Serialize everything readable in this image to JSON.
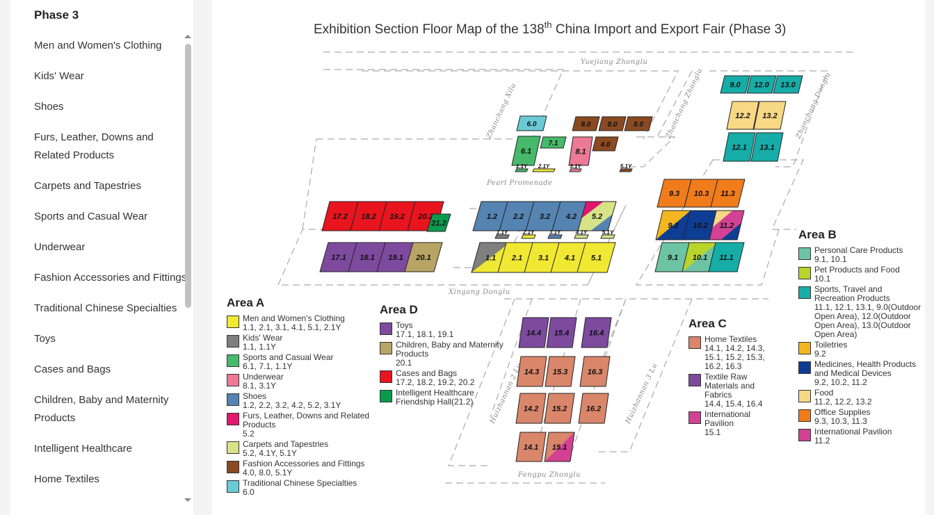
{
  "sidebar": {
    "title": "Phase 3",
    "items": [
      "Men and Women's Clothing",
      "Kids' Wear",
      "Shoes",
      "Furs, Leather, Downs and Related Products",
      "Carpets and Tapestries",
      "Sports and Casual Wear",
      "Underwear",
      "Fashion Accessories and Fittings",
      "Traditional Chinese Specialties",
      "Toys",
      "Cases and Bags",
      "Children, Baby and Maternity Products",
      "Intelligent Healthcare",
      "Home Textiles"
    ]
  },
  "map": {
    "title_pre": "Exhibition Section Floor Map of the 138",
    "title_sup": "th",
    "title_post": " China Import and Export Fair  (Phase 3)",
    "roads": [
      "Yuejiang Zhonglu",
      "Zhanchang Xilu",
      "Zhanchang Zhonglu",
      "Zhanchang Donglu",
      "Pearl Promenade",
      "Xingang Donglu",
      "Huizhannan 2 Lu",
      "Huizhannan 3 Lu",
      "Fengpu Zhonglu"
    ],
    "colors": {
      "yellow": "#f0e832",
      "gray": "#7f7f7f",
      "green": "#47b96a",
      "pink": "#ec7a96",
      "blue": "#5583b2",
      "magenta": "#e2176e",
      "lightgreen": "#d7e387",
      "brown": "#8b4a22",
      "cyan": "#6ccad6",
      "purple": "#7d4a9e",
      "tan": "#b8a465",
      "red": "#e8141e",
      "darkgreen": "#0a9a4e",
      "salmon": "#d9866a",
      "intl": "#d34194",
      "teal_green": "#6cc4a4",
      "lime": "#b9d42a",
      "teal": "#16ada8",
      "gold": "#f4b61f",
      "navy": "#0e3d94",
      "food": "#f7d885",
      "orange": "#f07c1c"
    },
    "halls": [
      {
        "label": "17.2",
        "c": [
          "red"
        ]
      },
      {
        "label": "18.2",
        "c": [
          "red"
        ]
      },
      {
        "label": "19.2",
        "c": [
          "red"
        ]
      },
      {
        "label": "20.2",
        "c": [
          "red"
        ]
      },
      {
        "label": "21.2",
        "c": [
          "darkgreen"
        ]
      },
      {
        "label": "17.1",
        "c": [
          "purple"
        ]
      },
      {
        "label": "18.1",
        "c": [
          "purple"
        ]
      },
      {
        "label": "19.1",
        "c": [
          "purple"
        ]
      },
      {
        "label": "20.1",
        "c": [
          "tan"
        ]
      },
      {
        "label": "1.2",
        "c": [
          "blue"
        ]
      },
      {
        "label": "2.2",
        "c": [
          "blue"
        ]
      },
      {
        "label": "3.2",
        "c": [
          "blue"
        ]
      },
      {
        "label": "4.2",
        "c": [
          "blue"
        ]
      },
      {
        "label": "5.2",
        "c": [
          "magenta",
          "lightgreen",
          "blue"
        ]
      },
      {
        "label": "1.1",
        "c": [
          "gray",
          "yellow"
        ]
      },
      {
        "label": "2.1",
        "c": [
          "yellow"
        ]
      },
      {
        "label": "3.1",
        "c": [
          "yellow"
        ]
      },
      {
        "label": "4.1",
        "c": [
          "yellow"
        ]
      },
      {
        "label": "5.1",
        "c": [
          "yellow"
        ]
      },
      {
        "label": "1.1Y",
        "c": [
          "gray"
        ]
      },
      {
        "label": "2.1Y",
        "c": [
          "yellow"
        ]
      },
      {
        "label": "3.1Y",
        "c": [
          "blue"
        ]
      },
      {
        "label": "4.1Y",
        "c": [
          "lightgreen"
        ]
      },
      {
        "label": "5.1Y",
        "c": [
          "lightgreen"
        ]
      },
      {
        "label": "6.0",
        "c": [
          "cyan"
        ]
      },
      {
        "label": "7.1",
        "c": [
          "green"
        ]
      },
      {
        "label": "6.1",
        "c": [
          "green"
        ]
      },
      {
        "label": "8.1",
        "c": [
          "pink"
        ]
      },
      {
        "label": "8.0",
        "c": [
          "brown"
        ]
      },
      {
        "label": "8.0",
        "c": [
          "brown"
        ]
      },
      {
        "label": "8.0",
        "c": [
          "brown"
        ]
      },
      {
        "label": "4.0",
        "c": [
          "brown"
        ]
      },
      {
        "label": "1.1Y",
        "c": [
          "green"
        ]
      },
      {
        "label": "2.1Y",
        "c": [
          "yellow"
        ]
      },
      {
        "label": "3.1Y",
        "c": [
          "pink"
        ]
      },
      {
        "label": "5.1Y",
        "c": [
          "brown"
        ]
      },
      {
        "label": "9.3",
        "c": [
          "orange"
        ]
      },
      {
        "label": "10.3",
        "c": [
          "orange"
        ]
      },
      {
        "label": "11.3",
        "c": [
          "orange"
        ]
      },
      {
        "label": "9.2",
        "c": [
          "gold",
          "navy"
        ]
      },
      {
        "label": "10.2",
        "c": [
          "navy"
        ]
      },
      {
        "label": "11.2",
        "c": [
          "food",
          "intl",
          "navy"
        ]
      },
      {
        "label": "9.1",
        "c": [
          "teal_green"
        ]
      },
      {
        "label": "10.1",
        "c": [
          "lime",
          "teal_green"
        ]
      },
      {
        "label": "11.1",
        "c": [
          "teal"
        ]
      },
      {
        "label": "9.0",
        "c": [
          "teal"
        ]
      },
      {
        "label": "12.0",
        "c": [
          "teal"
        ]
      },
      {
        "label": "13.0",
        "c": [
          "teal"
        ]
      },
      {
        "label": "12.2",
        "c": [
          "food"
        ]
      },
      {
        "label": "13.2",
        "c": [
          "food"
        ]
      },
      {
        "label": "12.1",
        "c": [
          "teal"
        ]
      },
      {
        "label": "13.1",
        "c": [
          "teal"
        ]
      },
      {
        "label": "14.4",
        "c": [
          "purple"
        ]
      },
      {
        "label": "15.4",
        "c": [
          "purple"
        ]
      },
      {
        "label": "16.4",
        "c": [
          "purple"
        ]
      },
      {
        "label": "14.3",
        "c": [
          "salmon"
        ]
      },
      {
        "label": "15.3",
        "c": [
          "salmon"
        ]
      },
      {
        "label": "16.3",
        "c": [
          "salmon"
        ]
      },
      {
        "label": "14.2",
        "c": [
          "salmon"
        ]
      },
      {
        "label": "15.2",
        "c": [
          "salmon"
        ]
      },
      {
        "label": "16.2",
        "c": [
          "salmon"
        ]
      },
      {
        "label": "14.1",
        "c": [
          "salmon"
        ]
      },
      {
        "label": "15.1",
        "c": [
          "salmon",
          "intl"
        ]
      }
    ]
  },
  "legends": {
    "A": {
      "title": "Area A",
      "items": [
        {
          "name": "Men and Women's Clothing",
          "halls": "1.1, 2.1, 3.1, 4.1, 5.1, 2.1Y",
          "c": "yellow"
        },
        {
          "name": "Kids' Wear",
          "halls": "1.1, 1.1Y",
          "c": "gray"
        },
        {
          "name": "Sports and Casual Wear",
          "halls": "6.1, 7.1, 1.1Y",
          "c": "green"
        },
        {
          "name": "Underwear",
          "halls": "8.1, 3.1Y",
          "c": "pink"
        },
        {
          "name": "Shoes",
          "halls": "1.2, 2.2, 3.2, 4.2, 5.2, 3.1Y",
          "c": "blue"
        },
        {
          "name": "Furs, Leather, Downs and Related Products",
          "halls": "5.2",
          "c": "magenta"
        },
        {
          "name": "Carpets and Tapestries",
          "halls": "5.2, 4.1Y, 5.1Y",
          "c": "lightgreen"
        },
        {
          "name": "Fashion Accessories and Fittings",
          "halls": "4.0, 8.0, 5.1Y",
          "c": "brown"
        },
        {
          "name": "Traditional Chinese Specialties",
          "halls": "6.0",
          "c": "cyan"
        }
      ]
    },
    "D": {
      "title": "Area D",
      "items": [
        {
          "name": "Toys",
          "halls": "17.1, 18.1, 19.1",
          "c": "purple"
        },
        {
          "name": "Children, Baby and Maternity Products",
          "halls": "20.1",
          "c": "tan"
        },
        {
          "name": "Cases and Bags",
          "halls": "17.2, 18.2, 19.2, 20.2",
          "c": "red"
        },
        {
          "name": "Intelligent Healthcare Friendship Hall(21.2)",
          "halls": "",
          "c": "darkgreen"
        }
      ]
    },
    "C": {
      "title": "Area C",
      "items": [
        {
          "name": "Home Textiles",
          "halls": "14.1, 14.2, 14.3, 15.1, 15.2, 15.3, 16.2, 16.3",
          "c": "salmon"
        },
        {
          "name": "Textile Raw Materials and Fabrics",
          "halls": "14.4, 15.4, 16.4",
          "c": "purple"
        },
        {
          "name": "International Pavilion",
          "halls": "15.1",
          "c": "intl"
        }
      ]
    },
    "B": {
      "title": "Area B",
      "items": [
        {
          "name": "Personal Care Products",
          "halls": "9.1, 10.1",
          "c": "teal_green"
        },
        {
          "name": "Pet Products and Food",
          "halls": "10.1",
          "c": "lime"
        },
        {
          "name": "Sports, Travel and Recreation Products",
          "halls": "11.1, 12.1, 13.1, 9.0(Outdoor Open Area), 12.0(Outdoor Open Area), 13.0(Outdoor Open Area)",
          "c": "teal"
        },
        {
          "name": "Toiletries",
          "halls": "9.2",
          "c": "gold"
        },
        {
          "name": "Medicines, Health Products and Medical Devices",
          "halls": "9.2, 10.2, 11.2",
          "c": "navy"
        },
        {
          "name": "Food",
          "halls": "11.2, 12.2, 13.2",
          "c": "food"
        },
        {
          "name": "Office Supplies",
          "halls": "9.3, 10.3, 11.3",
          "c": "orange"
        },
        {
          "name": "International Pavilion",
          "halls": "11.2",
          "c": "intl"
        }
      ]
    }
  }
}
